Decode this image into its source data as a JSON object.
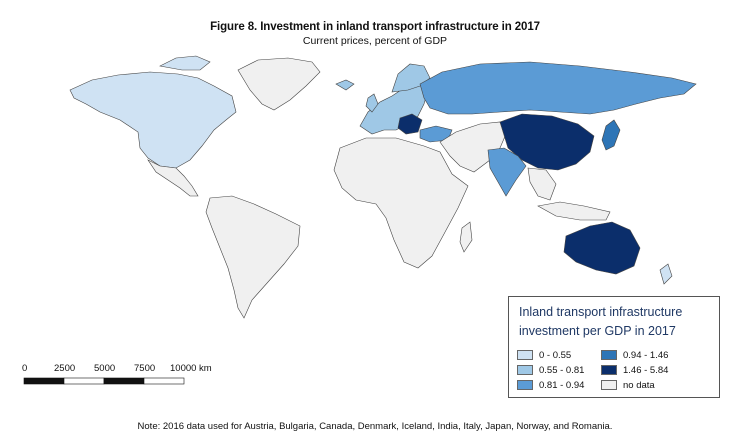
{
  "title": "Figure 8. Investment in inland transport infrastructure in 2017",
  "subtitle": "Current prices, percent of GDP",
  "legend": {
    "title_line1": "Inland transport infrastructure",
    "title_line2": "investment per GDP in 2017",
    "items": [
      {
        "label": "0 - 0.55",
        "color": "#cfe2f3"
      },
      {
        "label": "0.55 - 0.81",
        "color": "#9fc8e6"
      },
      {
        "label": "0.81 - 0.94",
        "color": "#5b9bd5"
      },
      {
        "label": "0.94 - 1.46",
        "color": "#2e75b6"
      },
      {
        "label": "1.46 - 5.84",
        "color": "#0b2e6b"
      },
      {
        "label": "no data",
        "color": "#f0f0f0"
      }
    ]
  },
  "scale_bar": {
    "labels": [
      "0",
      "2500",
      "5000",
      "7500",
      "10000 km"
    ]
  },
  "note": "Note: 2016 data used for Austria, Bulgaria, Canada, Denmark, Iceland, India, Italy, Japan, Norway, and Romania.",
  "regions": {
    "north_america": "#cfe2f3",
    "greenland": "#f0f0f0",
    "mexico": "#f0f0f0",
    "south_america": "#f0f0f0",
    "africa": "#f0f0f0",
    "europe": "#9fc8e6",
    "russia": "#5b9bd5",
    "turkey": "#5b9bd5",
    "balkans": "#0b2e6b",
    "middle_east": "#f0f0f0",
    "china": "#0b2e6b",
    "india": "#5b9bd5",
    "japan": "#2e75b6",
    "australia": "#0b2e6b",
    "new_zealand": "#cfe2f3",
    "southeast_asia": "#f0f0f0"
  }
}
